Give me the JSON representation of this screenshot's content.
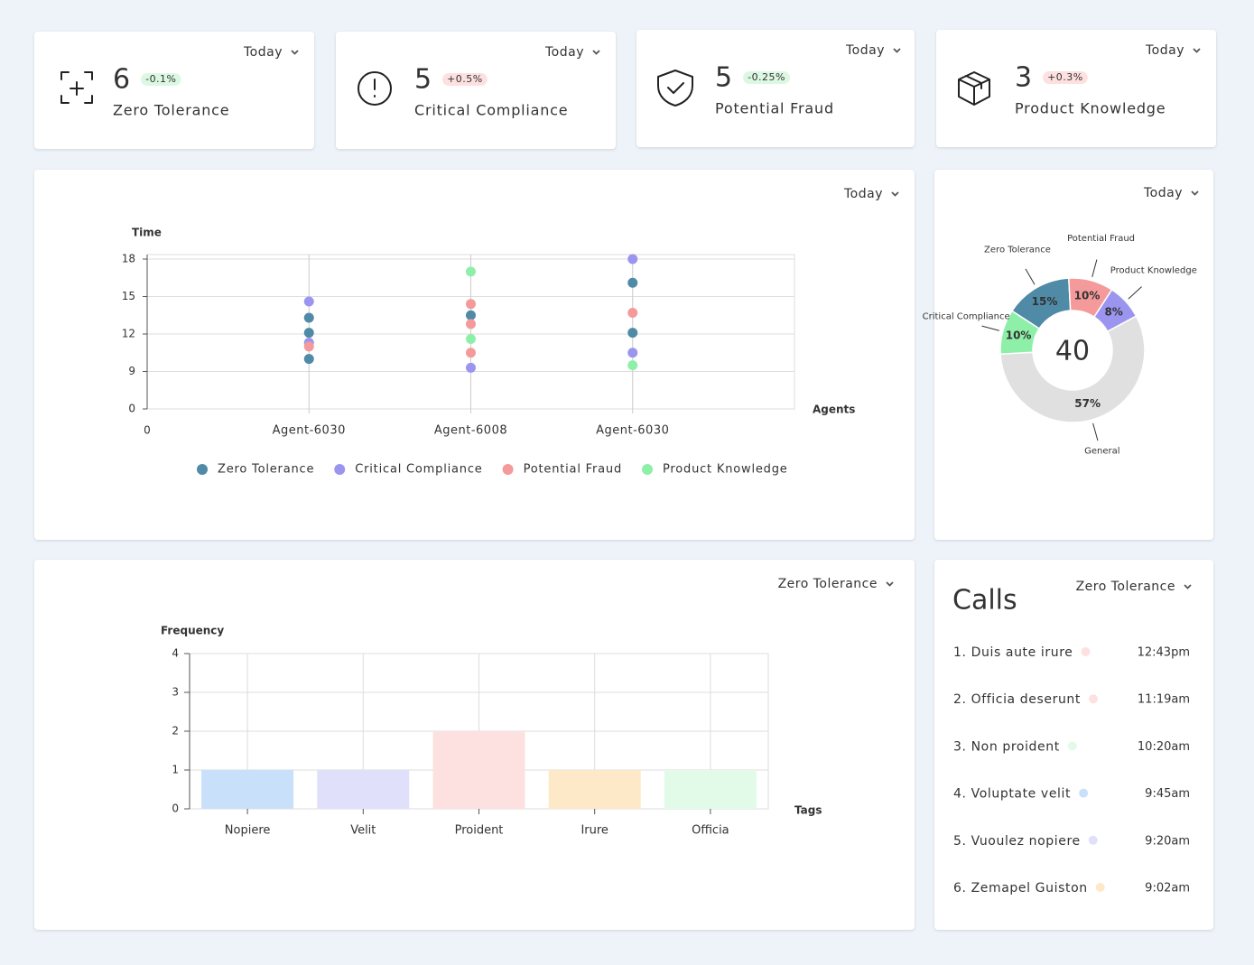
{
  "stats": [
    {
      "period": "Today",
      "value": 6,
      "change": "-0.1%",
      "trend": "up",
      "label": "Zero Tolerance"
    },
    {
      "period": "Today",
      "value": 5,
      "change": "+0.5%",
      "trend": "down",
      "label": "Critical Compliance"
    },
    {
      "period": "Today",
      "value": 5,
      "change": "-0.25%",
      "trend": "up",
      "label": "Potential Fraud"
    },
    {
      "period": "Today",
      "value": 3,
      "change": "+0.3%",
      "trend": "down",
      "label": "Product Knowledge"
    }
  ],
  "scatter": {
    "type": "scatter",
    "period": "Today",
    "y_label": "Time",
    "x_label": "Agents",
    "x_origin_label": "0",
    "categories": [
      "Agent-6030",
      "Agent-6008",
      "Agent-6030"
    ],
    "yticks": [
      0,
      9,
      12,
      15,
      18
    ],
    "series": [
      {
        "name": "Zero Tolerance",
        "color": "#4f8aa6",
        "values": [
          [
            13.3,
            12.1,
            10.0
          ],
          [
            13.5
          ],
          [
            16.1,
            12.1
          ]
        ]
      },
      {
        "name": "Critical Compliance",
        "color": "#9b95f0",
        "values": [
          [
            14.6,
            11.3
          ],
          [
            9.3
          ],
          [
            18,
            10.5
          ]
        ]
      },
      {
        "name": "Potential Fraud",
        "color": "#f59a9a",
        "values": [
          [
            11.0
          ],
          [
            14.4,
            12.8,
            10.5
          ],
          [
            13.7
          ]
        ]
      },
      {
        "name": "Product Knowledge",
        "color": "#8ef0a8",
        "values": [
          [],
          [
            17.0,
            11.6
          ],
          [
            9.5
          ]
        ]
      }
    ]
  },
  "donut": {
    "type": "pie",
    "period": "Today",
    "total": 40,
    "labels": [
      "Zero Tolerance",
      "Potential Fraud",
      "Product Knowledge",
      "General",
      "Critical Compliance"
    ],
    "values": [
      15,
      10,
      8,
      57,
      10
    ],
    "value_labels": [
      "15%",
      "10%",
      "8%",
      "57%",
      "10%"
    ],
    "colors": [
      "#4f8aa6",
      "#f59a9a",
      "#9b95f0",
      "#e0e0e0",
      "#8ef0a8"
    ]
  },
  "bar": {
    "type": "bar",
    "filter": "Zero Tolerance",
    "y_label": "Frequency",
    "x_label": "Tags",
    "categories": [
      "Nopiere",
      "Velit",
      "Proident",
      "Irure",
      "Officia"
    ],
    "values": [
      1,
      1,
      2,
      1,
      1
    ],
    "colors": [
      "#c9e0fb",
      "#e0e0fa",
      "#fde1e1",
      "#fde8c8",
      "#e2fbe9"
    ],
    "ylim": [
      0,
      4
    ],
    "yticks": [
      0,
      1,
      2,
      3,
      4
    ]
  },
  "calls": {
    "title": "Calls",
    "filter": "Zero Tolerance",
    "items": [
      {
        "name": "1. Duis aute irure",
        "color": "#fde1e1",
        "time": "12:43pm"
      },
      {
        "name": "2. Officia deserunt",
        "color": "#fde1e1",
        "time": "11:19am"
      },
      {
        "name": "3. Non proident",
        "color": "#e2fbe9",
        "time": "10:20am"
      },
      {
        "name": "4. Voluptate velit",
        "color": "#c9e0fb",
        "time": "9:45am"
      },
      {
        "name": "5. Vuoulez nopiere",
        "color": "#e0e0fa",
        "time": "9:20am"
      },
      {
        "name": "6. Zemapel Guiston",
        "color": "#fde8c8",
        "time": "9:02am"
      }
    ]
  }
}
